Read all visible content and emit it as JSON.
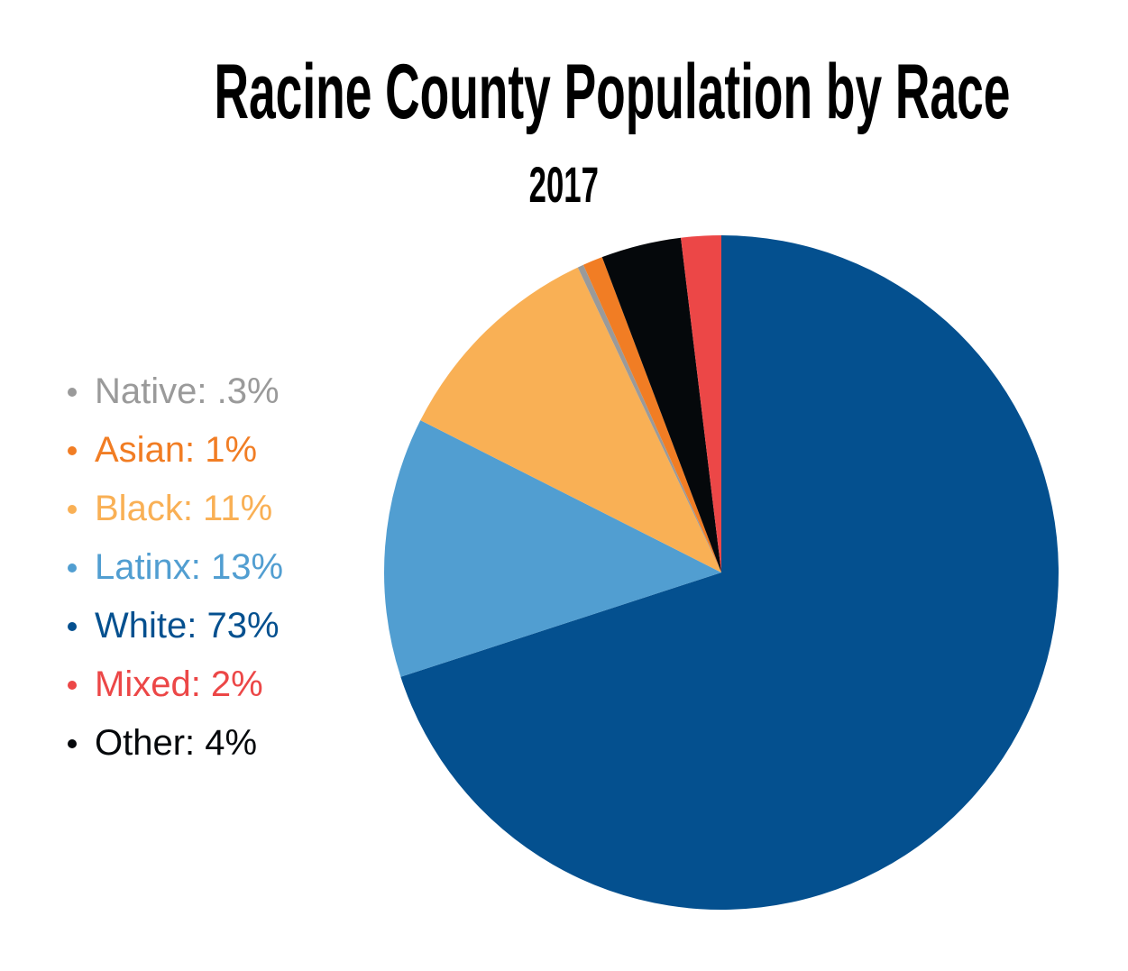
{
  "header": {
    "title": "Racine County Population by Race",
    "subtitle": "2017"
  },
  "chart_data": {
    "type": "pie",
    "title": "Racine County Population by Race",
    "subtitle": "2017",
    "start_angle_deg": 0,
    "direction": "clockwise",
    "slices": [
      {
        "label": "White",
        "value": 73,
        "display": "White: 73%",
        "color": "#04508F"
      },
      {
        "label": "Latinx",
        "value": 13,
        "display": "Latinx: 13%",
        "color": "#519ED1"
      },
      {
        "label": "Black",
        "value": 11,
        "display": "Black: 11%",
        "color": "#F9B055"
      },
      {
        "label": "Native",
        "value": 0.3,
        "display": "Native: .3%",
        "color": "#9A9A9A"
      },
      {
        "label": "Asian",
        "value": 1,
        "display": "Asian: 1%",
        "color": "#F17D24"
      },
      {
        "label": "Other",
        "value": 4,
        "display": "Other: 4%",
        "color": "#05080B"
      },
      {
        "label": "Mixed",
        "value": 2,
        "display": "Mixed: 2%",
        "color": "#EC4747"
      }
    ],
    "legend_position": "left",
    "legend": [
      {
        "text": "Native: .3%",
        "color": "#9A9A9A"
      },
      {
        "text": "Asian: 1%",
        "color": "#F17D24"
      },
      {
        "text": "Black: 11%",
        "color": "#F9B055"
      },
      {
        "text": "Latinx: 13%",
        "color": "#519ED1"
      },
      {
        "text": "White: 73%",
        "color": "#04508F"
      },
      {
        "text": "Mixed: 2%",
        "color": "#EC4747"
      },
      {
        "text": "Other: 4%",
        "color": "#05080B"
      }
    ]
  }
}
